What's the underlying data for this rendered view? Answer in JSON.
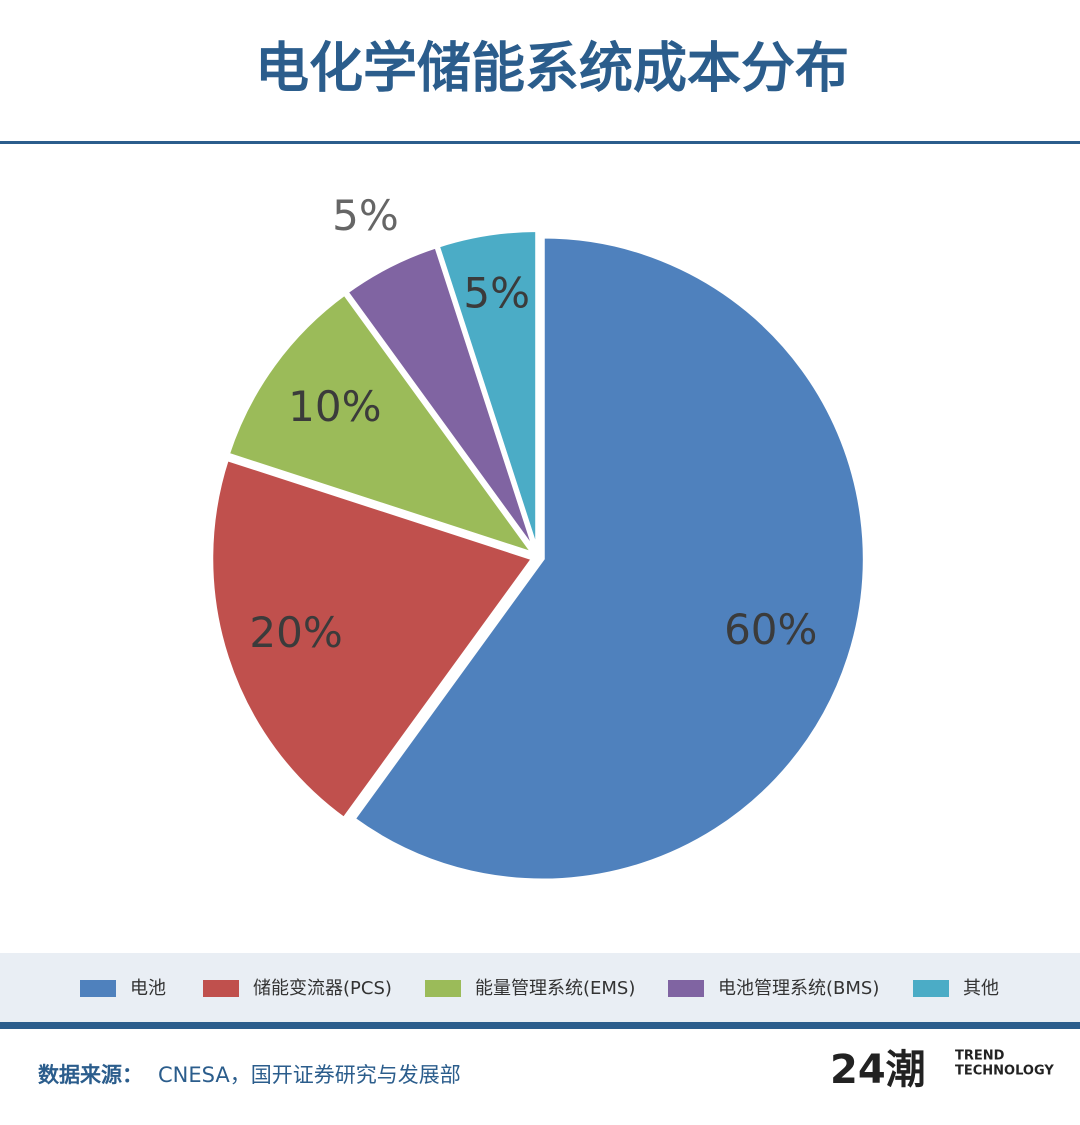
{
  "chart_data": {
    "type": "pie",
    "title": "电化学储能系统成本分布",
    "categories": [
      "电池",
      "储能变流器(PCS)",
      "能量管理系统(EMS)",
      "电池管理系统(BMS)",
      "其他"
    ],
    "values": [
      60,
      20,
      10,
      5,
      5
    ],
    "value_labels": [
      "60%",
      "20%",
      "10%",
      "5%",
      "5%"
    ],
    "colors": [
      "#4f81bd",
      "#c0504d",
      "#9bbb59",
      "#8064a2",
      "#4bacc6"
    ],
    "legend": "bottom"
  },
  "footer": {
    "source_label": "数据来源：",
    "source": "CNESA，国开证券研究与发展部",
    "logo": "24潮",
    "logo_line1": "TREND",
    "logo_line2": "TECHNOLOGY"
  }
}
